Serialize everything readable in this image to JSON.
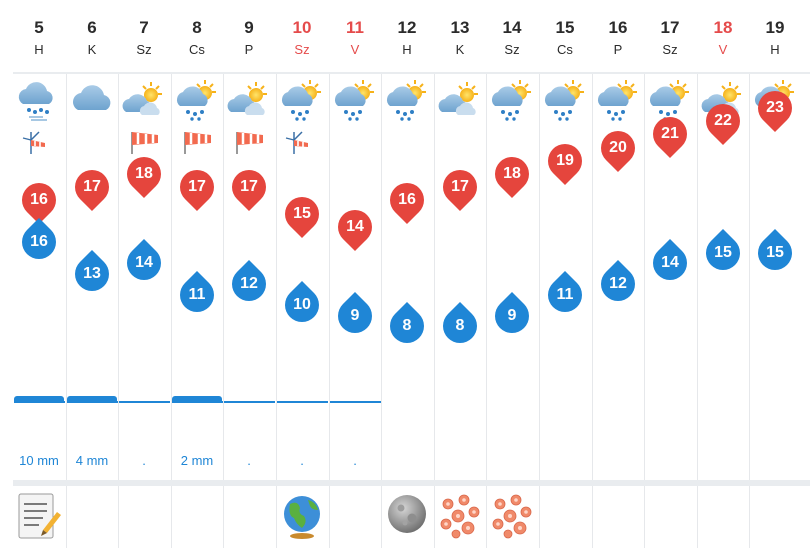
{
  "days": [
    {
      "num": "5",
      "name": "H",
      "weekend": false,
      "icon": "rain-cloud-icon",
      "wind": "wind-vane-icon",
      "max": "16",
      "min": "16",
      "precip": "10 mm",
      "bottom": "notepad-icon"
    },
    {
      "num": "6",
      "name": "K",
      "weekend": false,
      "icon": "cloud-icon",
      "wind": "",
      "max": "17",
      "min": "13",
      "precip": "4 mm",
      "bottom": ""
    },
    {
      "num": "7",
      "name": "Sz",
      "weekend": false,
      "icon": "partly-cloudy-icon",
      "wind": "windsock-icon",
      "max": "18",
      "min": "14",
      "precip": ".",
      "bottom": ""
    },
    {
      "num": "8",
      "name": "Cs",
      "weekend": false,
      "icon": "sun-cloud-rain-icon",
      "wind": "windsock-icon",
      "max": "17",
      "min": "11",
      "precip": "2 mm",
      "bottom": ""
    },
    {
      "num": "9",
      "name": "P",
      "weekend": false,
      "icon": "partly-cloudy-icon",
      "wind": "windsock-icon",
      "max": "17",
      "min": "12",
      "precip": ".",
      "bottom": ""
    },
    {
      "num": "10",
      "name": "Sz",
      "weekend": true,
      "icon": "sun-cloud-rain-icon",
      "wind": "wind-vane-icon",
      "max": "15",
      "min": "10",
      "precip": ".",
      "bottom": "globe-icon"
    },
    {
      "num": "11",
      "name": "V",
      "weekend": true,
      "icon": "sun-cloud-rain-icon",
      "wind": "",
      "max": "14",
      "min": "9",
      "precip": ".",
      "bottom": ""
    },
    {
      "num": "12",
      "name": "H",
      "weekend": false,
      "icon": "sun-cloud-rain-icon",
      "wind": "",
      "max": "16",
      "min": "8",
      "precip": "",
      "bottom": "moon-icon"
    },
    {
      "num": "13",
      "name": "K",
      "weekend": false,
      "icon": "partly-cloudy-icon",
      "wind": "",
      "max": "17",
      "min": "8",
      "precip": "",
      "bottom": "flower-icon"
    },
    {
      "num": "14",
      "name": "Sz",
      "weekend": false,
      "icon": "sun-cloud-rain-icon",
      "wind": "",
      "max": "18",
      "min": "9",
      "precip": "",
      "bottom": "flower-icon"
    },
    {
      "num": "15",
      "name": "Cs",
      "weekend": false,
      "icon": "sun-cloud-rain-icon",
      "wind": "",
      "max": "19",
      "min": "11",
      "precip": "",
      "bottom": ""
    },
    {
      "num": "16",
      "name": "P",
      "weekend": false,
      "icon": "sun-cloud-rain-icon",
      "wind": "",
      "max": "20",
      "min": "12",
      "precip": "",
      "bottom": ""
    },
    {
      "num": "17",
      "name": "Sz",
      "weekend": false,
      "icon": "sun-cloud-rain-icon",
      "wind": "",
      "max": "21",
      "min": "14",
      "precip": "",
      "bottom": ""
    },
    {
      "num": "18",
      "name": "V",
      "weekend": true,
      "icon": "partly-cloudy-icon",
      "wind": "",
      "max": "22",
      "min": "15",
      "precip": "",
      "bottom": ""
    },
    {
      "num": "19",
      "name": "H",
      "weekend": false,
      "icon": "sun-cloud-rain-icon",
      "wind": "",
      "max": "23",
      "min": "15",
      "precip": "",
      "bottom": ""
    }
  ],
  "colors": {
    "max_pin": "#e5453d",
    "min_pin": "#1f86d6",
    "weekend": "#e54b4b"
  }
}
